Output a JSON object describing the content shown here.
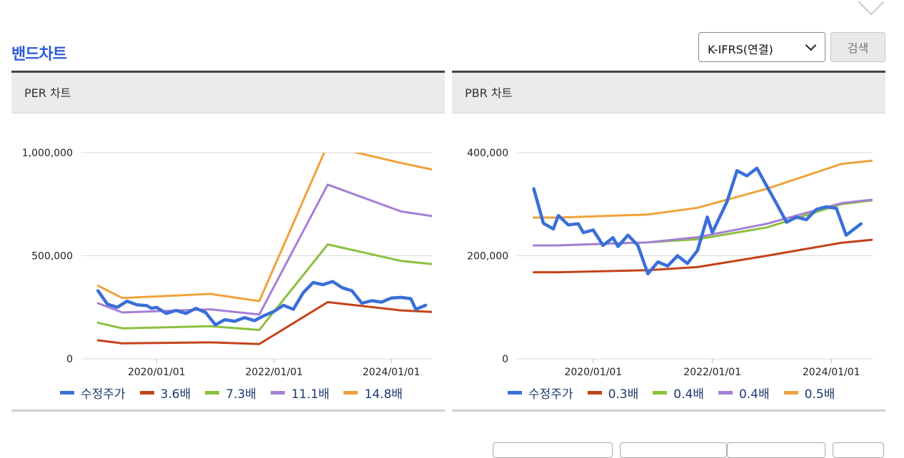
{
  "section_title": "밴드차트",
  "select": {
    "value": "K-IFRS(연결)"
  },
  "search_label": "검색",
  "panels": [
    {
      "header": "PER 차트"
    },
    {
      "header": "PBR 차트"
    }
  ],
  "chart_data": [
    {
      "type": "line",
      "title": "PER 차트",
      "ylim": [
        0,
        1000000
      ],
      "yticks": [
        "1,000,000",
        "500,000",
        "0"
      ],
      "xticks": [
        "2020/01/01",
        "2022/01/01",
        "2024/01/01"
      ],
      "grid": true,
      "legend_position": "bottom",
      "series": [
        {
          "name": "수정주가",
          "color": "#3a6fd8",
          "points": [
            [
              "2019/01/01",
              330000
            ],
            [
              "2019/03/01",
              265000
            ],
            [
              "2019/05/01",
              250000
            ],
            [
              "2019/07/01",
              280000
            ],
            [
              "2019/09/01",
              262000
            ],
            [
              "2019/11/01",
              258000
            ],
            [
              "2019/12/01",
              245000
            ],
            [
              "2020/01/01",
              250000
            ],
            [
              "2020/03/01",
              220000
            ],
            [
              "2020/05/01",
              235000
            ],
            [
              "2020/07/01",
              220000
            ],
            [
              "2020/09/01",
              245000
            ],
            [
              "2020/11/01",
              225000
            ],
            [
              "2021/01/01",
              165000
            ],
            [
              "2021/03/01",
              190000
            ],
            [
              "2021/05/01",
              182000
            ],
            [
              "2021/07/01",
              200000
            ],
            [
              "2021/09/01",
              185000
            ],
            [
              "2021/11/01",
              210000
            ],
            [
              "2022/01/01",
              230000
            ],
            [
              "2022/03/01",
              260000
            ],
            [
              "2022/05/01",
              240000
            ],
            [
              "2022/07/01",
              320000
            ],
            [
              "2022/09/01",
              370000
            ],
            [
              "2022/11/01",
              360000
            ],
            [
              "2023/01/01",
              375000
            ],
            [
              "2023/03/01",
              345000
            ],
            [
              "2023/05/01",
              330000
            ],
            [
              "2023/07/01",
              270000
            ],
            [
              "2023/09/01",
              282000
            ],
            [
              "2023/11/01",
              275000
            ],
            [
              "2024/01/01",
              295000
            ],
            [
              "2024/03/01",
              298000
            ],
            [
              "2024/05/01",
              292000
            ],
            [
              "2024/06/01",
              240000
            ],
            [
              "2024/08/01",
              260000
            ]
          ]
        },
        {
          "name": "3.6배",
          "color": "#c4421a",
          "points": [
            [
              "2019/01/01",
              90000
            ],
            [
              "2019/06/01",
              75000
            ],
            [
              "2020/12/01",
              80000
            ],
            [
              "2021/10/01",
              72000
            ],
            [
              "2022/12/01",
              275000
            ],
            [
              "2024/03/01",
              235000
            ],
            [
              "2025/12/01",
              210000
            ],
            [
              "2026/08/01",
              213000
            ]
          ]
        },
        {
          "name": "7.3배",
          "color": "#8bc03d",
          "points": [
            [
              "2019/01/01",
              175000
            ],
            [
              "2019/06/01",
              148000
            ],
            [
              "2020/12/01",
              158000
            ],
            [
              "2021/10/01",
              140000
            ],
            [
              "2022/12/01",
              555000
            ],
            [
              "2024/03/01",
              475000
            ],
            [
              "2025/12/01",
              425000
            ],
            [
              "2026/08/01",
              430000
            ]
          ]
        },
        {
          "name": "11.1배",
          "color": "#a57fd6",
          "points": [
            [
              "2019/01/01",
              270000
            ],
            [
              "2019/06/01",
              225000
            ],
            [
              "2020/12/01",
              240000
            ],
            [
              "2021/10/01",
              215000
            ],
            [
              "2022/12/01",
              845000
            ],
            [
              "2024/03/01",
              715000
            ],
            [
              "2025/12/01",
              640000
            ],
            [
              "2026/08/01",
              648000
            ]
          ]
        },
        {
          "name": "14.8배",
          "color": "#f0a23a",
          "points": [
            [
              "2019/01/01",
              355000
            ],
            [
              "2019/06/01",
              295000
            ],
            [
              "2020/12/01",
              315000
            ],
            [
              "2021/10/01",
              280000
            ],
            [
              "2022/12/01",
              1040000
            ],
            [
              "2023/06/01",
              1000000
            ],
            [
              "2024/03/01",
              950000
            ],
            [
              "2025/12/01",
              845000
            ],
            [
              "2026/08/01",
              860000
            ]
          ]
        }
      ]
    },
    {
      "type": "line",
      "title": "PBR 차트",
      "ylim": [
        0,
        400000
      ],
      "yticks": [
        "400,000",
        "200,000",
        "0"
      ],
      "xticks": [
        "2020/01/01",
        "2022/01/01",
        "2024/01/01"
      ],
      "grid": true,
      "legend_position": "bottom",
      "series": [
        {
          "name": "수정주가",
          "color": "#3a6fd8",
          "points": [
            [
              "2019/01/01",
              330000
            ],
            [
              "2019/03/01",
              263000
            ],
            [
              "2019/05/01",
              252000
            ],
            [
              "2019/06/01",
              278000
            ],
            [
              "2019/08/01",
              260000
            ],
            [
              "2019/10/01",
              262000
            ],
            [
              "2019/11/01",
              245000
            ],
            [
              "2020/01/01",
              250000
            ],
            [
              "2020/03/01",
              220000
            ],
            [
              "2020/05/01",
              235000
            ],
            [
              "2020/06/01",
              218000
            ],
            [
              "2020/08/01",
              240000
            ],
            [
              "2020/10/01",
              220000
            ],
            [
              "2020/12/01",
              165000
            ],
            [
              "2021/02/01",
              188000
            ],
            [
              "2021/04/01",
              180000
            ],
            [
              "2021/06/01",
              200000
            ],
            [
              "2021/08/01",
              185000
            ],
            [
              "2021/10/01",
              210000
            ],
            [
              "2021/12/01",
              275000
            ],
            [
              "2022/01/01",
              245000
            ],
            [
              "2022/04/01",
              305000
            ],
            [
              "2022/06/01",
              365000
            ],
            [
              "2022/08/01",
              355000
            ],
            [
              "2022/10/01",
              370000
            ],
            [
              "2022/12/01",
              335000
            ],
            [
              "2023/02/01",
              300000
            ],
            [
              "2023/04/01",
              265000
            ],
            [
              "2023/06/01",
              275000
            ],
            [
              "2023/08/01",
              270000
            ],
            [
              "2023/10/01",
              290000
            ],
            [
              "2023/12/01",
              295000
            ],
            [
              "2024/02/01",
              292000
            ],
            [
              "2024/04/01",
              240000
            ],
            [
              "2024/07/01",
              262000
            ]
          ]
        },
        {
          "name": "0.3배",
          "color": "#c4421a",
          "points": [
            [
              "2019/01/01",
              168000
            ],
            [
              "2019/06/01",
              168000
            ],
            [
              "2020/12/01",
              172000
            ],
            [
              "2021/10/01",
              178000
            ],
            [
              "2022/12/01",
              200000
            ],
            [
              "2024/03/01",
              225000
            ],
            [
              "2025/12/01",
              245000
            ],
            [
              "2026/08/01",
              254000
            ]
          ]
        },
        {
          "name": "0.4배",
          "color": "#8bc03d",
          "points": [
            [
              "2019/01/01",
              220000
            ],
            [
              "2019/06/01",
              220000
            ],
            [
              "2020/12/01",
              226000
            ],
            [
              "2021/10/01",
              232000
            ],
            [
              "2022/12/01",
              255000
            ],
            [
              "2024/03/01",
              300000
            ],
            [
              "2025/12/01",
              325000
            ],
            [
              "2026/08/01",
              336000
            ]
          ]
        },
        {
          "name": "0.4배",
          "color": "#a57fd6",
          "points": [
            [
              "2019/01/01",
              220000
            ],
            [
              "2019/06/01",
              220000
            ],
            [
              "2020/12/01",
              226000
            ],
            [
              "2021/10/01",
              236000
            ],
            [
              "2022/12/01",
              262000
            ],
            [
              "2024/03/01",
              302000
            ],
            [
              "2025/12/01",
              325000
            ],
            [
              "2026/08/01",
              336000
            ]
          ]
        },
        {
          "name": "0.5배",
          "color": "#f0a23a",
          "points": [
            [
              "2019/01/01",
              274000
            ],
            [
              "2019/06/01",
              274000
            ],
            [
              "2020/12/01",
              280000
            ],
            [
              "2021/10/01",
              293000
            ],
            [
              "2022/12/01",
              330000
            ],
            [
              "2024/03/01",
              378000
            ],
            [
              "2025/12/01",
              400000
            ],
            [
              "2026/08/01",
              410000
            ]
          ]
        }
      ]
    }
  ]
}
